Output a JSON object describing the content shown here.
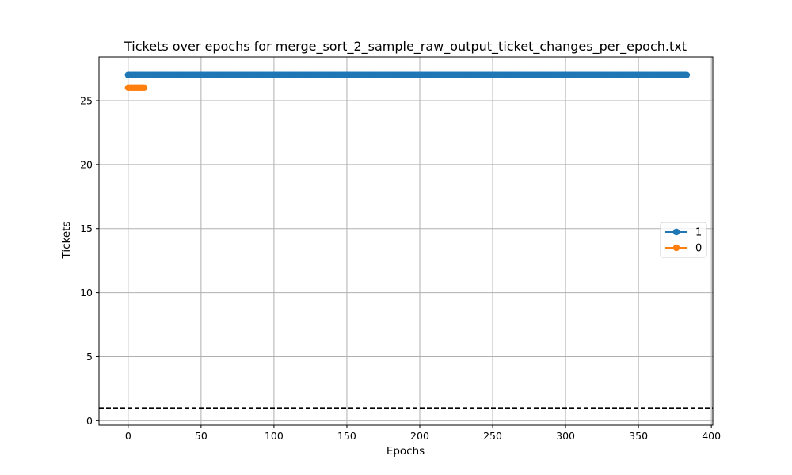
{
  "chart_data": {
    "type": "line",
    "title": "Tickets over epochs for merge_sort_2_sample_raw_output_ticket_changes_per_epoch.txt",
    "xlabel": "Epochs",
    "ylabel": "Tickets",
    "xlim": [
      -20,
      401
    ],
    "ylim": [
      -0.35,
      28.4
    ],
    "xticks": [
      0,
      50,
      100,
      150,
      200,
      250,
      300,
      350,
      400
    ],
    "yticks": [
      0,
      5,
      10,
      15,
      20,
      25
    ],
    "grid": true,
    "legend_position": "center-right",
    "reference_line": {
      "y": 1,
      "style": "dashed",
      "color": "#000000"
    },
    "series": [
      {
        "name": "1",
        "color": "#1f77b4",
        "x_start": 0,
        "x_end": 383,
        "y": 27
      },
      {
        "name": "0",
        "color": "#ff7f0e",
        "x_start": 0,
        "x_end": 11,
        "y": 26
      }
    ]
  }
}
